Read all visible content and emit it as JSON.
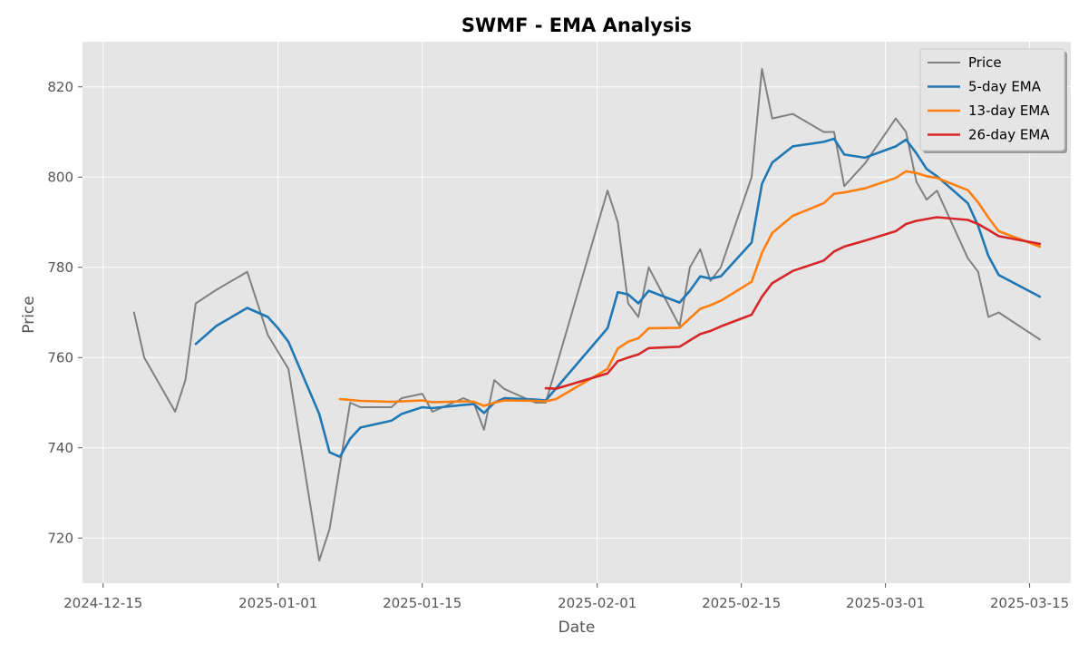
{
  "chart_data": {
    "type": "line",
    "title": "SWMF - EMA Analysis",
    "xlabel": "Date",
    "ylabel": "Price",
    "xlim": [
      "2024-12-13",
      "2025-03-19"
    ],
    "ylim": [
      710,
      830
    ],
    "x_ticks": [
      "2024-12-15",
      "2025-01-01",
      "2025-01-15",
      "2025-02-01",
      "2025-02-15",
      "2025-03-01",
      "2025-03-15"
    ],
    "y_ticks": [
      720,
      740,
      760,
      780,
      800,
      820
    ],
    "grid": true,
    "legend_position": "top-right",
    "colors": {
      "background": "#e5e5e5",
      "grid": "#ffffff",
      "Price": "#808080",
      "5-day EMA": "#1f77b4",
      "13-day EMA": "#ff7f0e",
      "26-day EMA": "#d62728"
    },
    "series": [
      {
        "name": "Price",
        "points": [
          [
            "2024-12-18",
            770
          ],
          [
            "2024-12-19",
            760
          ],
          [
            "2024-12-22",
            748
          ],
          [
            "2024-12-23",
            755
          ],
          [
            "2024-12-24",
            772
          ],
          [
            "2024-12-26",
            775
          ],
          [
            "2024-12-29",
            779
          ],
          [
            "2024-12-31",
            765
          ],
          [
            "2025-01-02",
            757.5
          ],
          [
            "2025-01-05",
            715
          ],
          [
            "2025-01-06",
            722
          ],
          [
            "2025-01-08",
            750
          ],
          [
            "2025-01-09",
            749
          ],
          [
            "2025-01-12",
            749
          ],
          [
            "2025-01-13",
            751
          ],
          [
            "2025-01-15",
            752
          ],
          [
            "2025-01-16",
            748
          ],
          [
            "2025-01-19",
            751
          ],
          [
            "2025-01-20",
            750
          ],
          [
            "2025-01-21",
            744
          ],
          [
            "2025-01-22",
            755
          ],
          [
            "2025-01-23",
            753
          ],
          [
            "2025-01-26",
            750
          ],
          [
            "2025-01-27",
            750
          ],
          [
            "2025-02-02",
            797
          ],
          [
            "2025-02-03",
            790
          ],
          [
            "2025-02-04",
            772
          ],
          [
            "2025-02-05",
            769
          ],
          [
            "2025-02-06",
            780
          ],
          [
            "2025-02-09",
            767
          ],
          [
            "2025-02-10",
            780
          ],
          [
            "2025-02-11",
            784
          ],
          [
            "2025-02-12",
            777
          ],
          [
            "2025-02-13",
            780
          ],
          [
            "2025-02-16",
            800
          ],
          [
            "2025-02-17",
            824
          ],
          [
            "2025-02-18",
            813
          ],
          [
            "2025-02-20",
            814
          ],
          [
            "2025-02-23",
            810
          ],
          [
            "2025-02-24",
            810
          ],
          [
            "2025-02-25",
            798
          ],
          [
            "2025-02-27",
            803
          ],
          [
            "2025-03-02",
            813
          ],
          [
            "2025-03-03",
            810
          ],
          [
            "2025-03-04",
            799
          ],
          [
            "2025-03-05",
            795
          ],
          [
            "2025-03-06",
            797
          ],
          [
            "2025-03-09",
            782
          ],
          [
            "2025-03-10",
            779
          ],
          [
            "2025-03-11",
            769
          ],
          [
            "2025-03-12",
            770
          ],
          [
            "2025-03-16",
            764
          ]
        ]
      },
      {
        "name": "5-day EMA",
        "points": [
          [
            "2024-12-24",
            763
          ],
          [
            "2024-12-26",
            767
          ],
          [
            "2024-12-29",
            771
          ],
          [
            "2024-12-31",
            769
          ],
          [
            "2025-01-01",
            766.5
          ],
          [
            "2025-01-02",
            763.5
          ],
          [
            "2025-01-05",
            747.5
          ],
          [
            "2025-01-06",
            739
          ],
          [
            "2025-01-07",
            738
          ],
          [
            "2025-01-08",
            742
          ],
          [
            "2025-01-09",
            744.5
          ],
          [
            "2025-01-12",
            746
          ],
          [
            "2025-01-13",
            747.5
          ],
          [
            "2025-01-15",
            749
          ],
          [
            "2025-01-16",
            748.8
          ],
          [
            "2025-01-19",
            749.5
          ],
          [
            "2025-01-20",
            749.7
          ],
          [
            "2025-01-21",
            747.7
          ],
          [
            "2025-01-22",
            750
          ],
          [
            "2025-01-23",
            751
          ],
          [
            "2025-01-26",
            750.7
          ],
          [
            "2025-01-27",
            750.5
          ],
          [
            "2025-02-02",
            766.5
          ],
          [
            "2025-02-03",
            774.5
          ],
          [
            "2025-02-04",
            774
          ],
          [
            "2025-02-05",
            772
          ],
          [
            "2025-02-06",
            774.8
          ],
          [
            "2025-02-09",
            772.2
          ],
          [
            "2025-02-10",
            774.8
          ],
          [
            "2025-02-11",
            778
          ],
          [
            "2025-02-12",
            777.5
          ],
          [
            "2025-02-13",
            778
          ],
          [
            "2025-02-16",
            785.5
          ],
          [
            "2025-02-17",
            798.5
          ],
          [
            "2025-02-18",
            803.2
          ],
          [
            "2025-02-20",
            806.8
          ],
          [
            "2025-02-23",
            807.8
          ],
          [
            "2025-02-24",
            808.5
          ],
          [
            "2025-02-25",
            805
          ],
          [
            "2025-02-27",
            804.3
          ],
          [
            "2025-03-02",
            806.8
          ],
          [
            "2025-03-03",
            808.3
          ],
          [
            "2025-03-04",
            805.3
          ],
          [
            "2025-03-05",
            801.8
          ],
          [
            "2025-03-06",
            800.2
          ],
          [
            "2025-03-09",
            794.2
          ],
          [
            "2025-03-10",
            789.2
          ],
          [
            "2025-03-11",
            782.5
          ],
          [
            "2025-03-12",
            778.3
          ],
          [
            "2025-03-16",
            773.5
          ]
        ]
      },
      {
        "name": "13-day EMA",
        "points": [
          [
            "2025-01-07",
            750.8
          ],
          [
            "2025-01-08",
            750.6
          ],
          [
            "2025-01-09",
            750.4
          ],
          [
            "2025-01-12",
            750.2
          ],
          [
            "2025-01-13",
            750.3
          ],
          [
            "2025-01-15",
            750.5
          ],
          [
            "2025-01-16",
            750.1
          ],
          [
            "2025-01-19",
            750.3
          ],
          [
            "2025-01-20",
            750.2
          ],
          [
            "2025-01-21",
            749.3
          ],
          [
            "2025-01-22",
            750
          ],
          [
            "2025-01-23",
            750.5
          ],
          [
            "2025-01-26",
            750.4
          ],
          [
            "2025-01-27",
            750.3
          ],
          [
            "2025-01-28",
            750.8
          ],
          [
            "2025-02-02",
            757.5
          ],
          [
            "2025-02-03",
            762
          ],
          [
            "2025-02-04",
            763.5
          ],
          [
            "2025-02-05",
            764.3
          ],
          [
            "2025-02-06",
            766.5
          ],
          [
            "2025-02-09",
            766.6
          ],
          [
            "2025-02-10",
            768.7
          ],
          [
            "2025-02-11",
            770.8
          ],
          [
            "2025-02-12",
            771.6
          ],
          [
            "2025-02-13",
            772.6
          ],
          [
            "2025-02-16",
            776.8
          ],
          [
            "2025-02-17",
            783.2
          ],
          [
            "2025-02-18",
            787.6
          ],
          [
            "2025-02-20",
            791.4
          ],
          [
            "2025-02-23",
            794.2
          ],
          [
            "2025-02-24",
            796.3
          ],
          [
            "2025-02-25",
            796.6
          ],
          [
            "2025-02-27",
            797.5
          ],
          [
            "2025-03-02",
            799.8
          ],
          [
            "2025-03-03",
            801.3
          ],
          [
            "2025-03-04",
            800.9
          ],
          [
            "2025-03-05",
            800.2
          ],
          [
            "2025-03-06",
            799.8
          ],
          [
            "2025-03-09",
            797.1
          ],
          [
            "2025-03-10",
            794.4
          ],
          [
            "2025-03-11",
            791
          ],
          [
            "2025-03-12",
            788
          ],
          [
            "2025-03-16",
            784.6
          ]
        ]
      },
      {
        "name": "26-day EMA",
        "points": [
          [
            "2025-01-27",
            753.2
          ],
          [
            "2025-01-28",
            753.1
          ],
          [
            "2025-02-02",
            756.5
          ],
          [
            "2025-02-03",
            759.2
          ],
          [
            "2025-02-04",
            760
          ],
          [
            "2025-02-05",
            760.7
          ],
          [
            "2025-02-06",
            762.1
          ],
          [
            "2025-02-09",
            762.4
          ],
          [
            "2025-02-10",
            763.8
          ],
          [
            "2025-02-11",
            765.2
          ],
          [
            "2025-02-12",
            765.9
          ],
          [
            "2025-02-13",
            766.9
          ],
          [
            "2025-02-16",
            769.5
          ],
          [
            "2025-02-17",
            773.5
          ],
          [
            "2025-02-18",
            776.5
          ],
          [
            "2025-02-20",
            779.2
          ],
          [
            "2025-02-23",
            781.5
          ],
          [
            "2025-02-24",
            783.5
          ],
          [
            "2025-02-25",
            784.6
          ],
          [
            "2025-02-27",
            785.9
          ],
          [
            "2025-03-02",
            788
          ],
          [
            "2025-03-03",
            789.6
          ],
          [
            "2025-03-04",
            790.3
          ],
          [
            "2025-03-05",
            790.7
          ],
          [
            "2025-03-06",
            791.1
          ],
          [
            "2025-03-09",
            790.5
          ],
          [
            "2025-03-10",
            789.6
          ],
          [
            "2025-03-11",
            788.3
          ],
          [
            "2025-03-12",
            786.9
          ],
          [
            "2025-03-16",
            785.2
          ]
        ]
      }
    ]
  }
}
